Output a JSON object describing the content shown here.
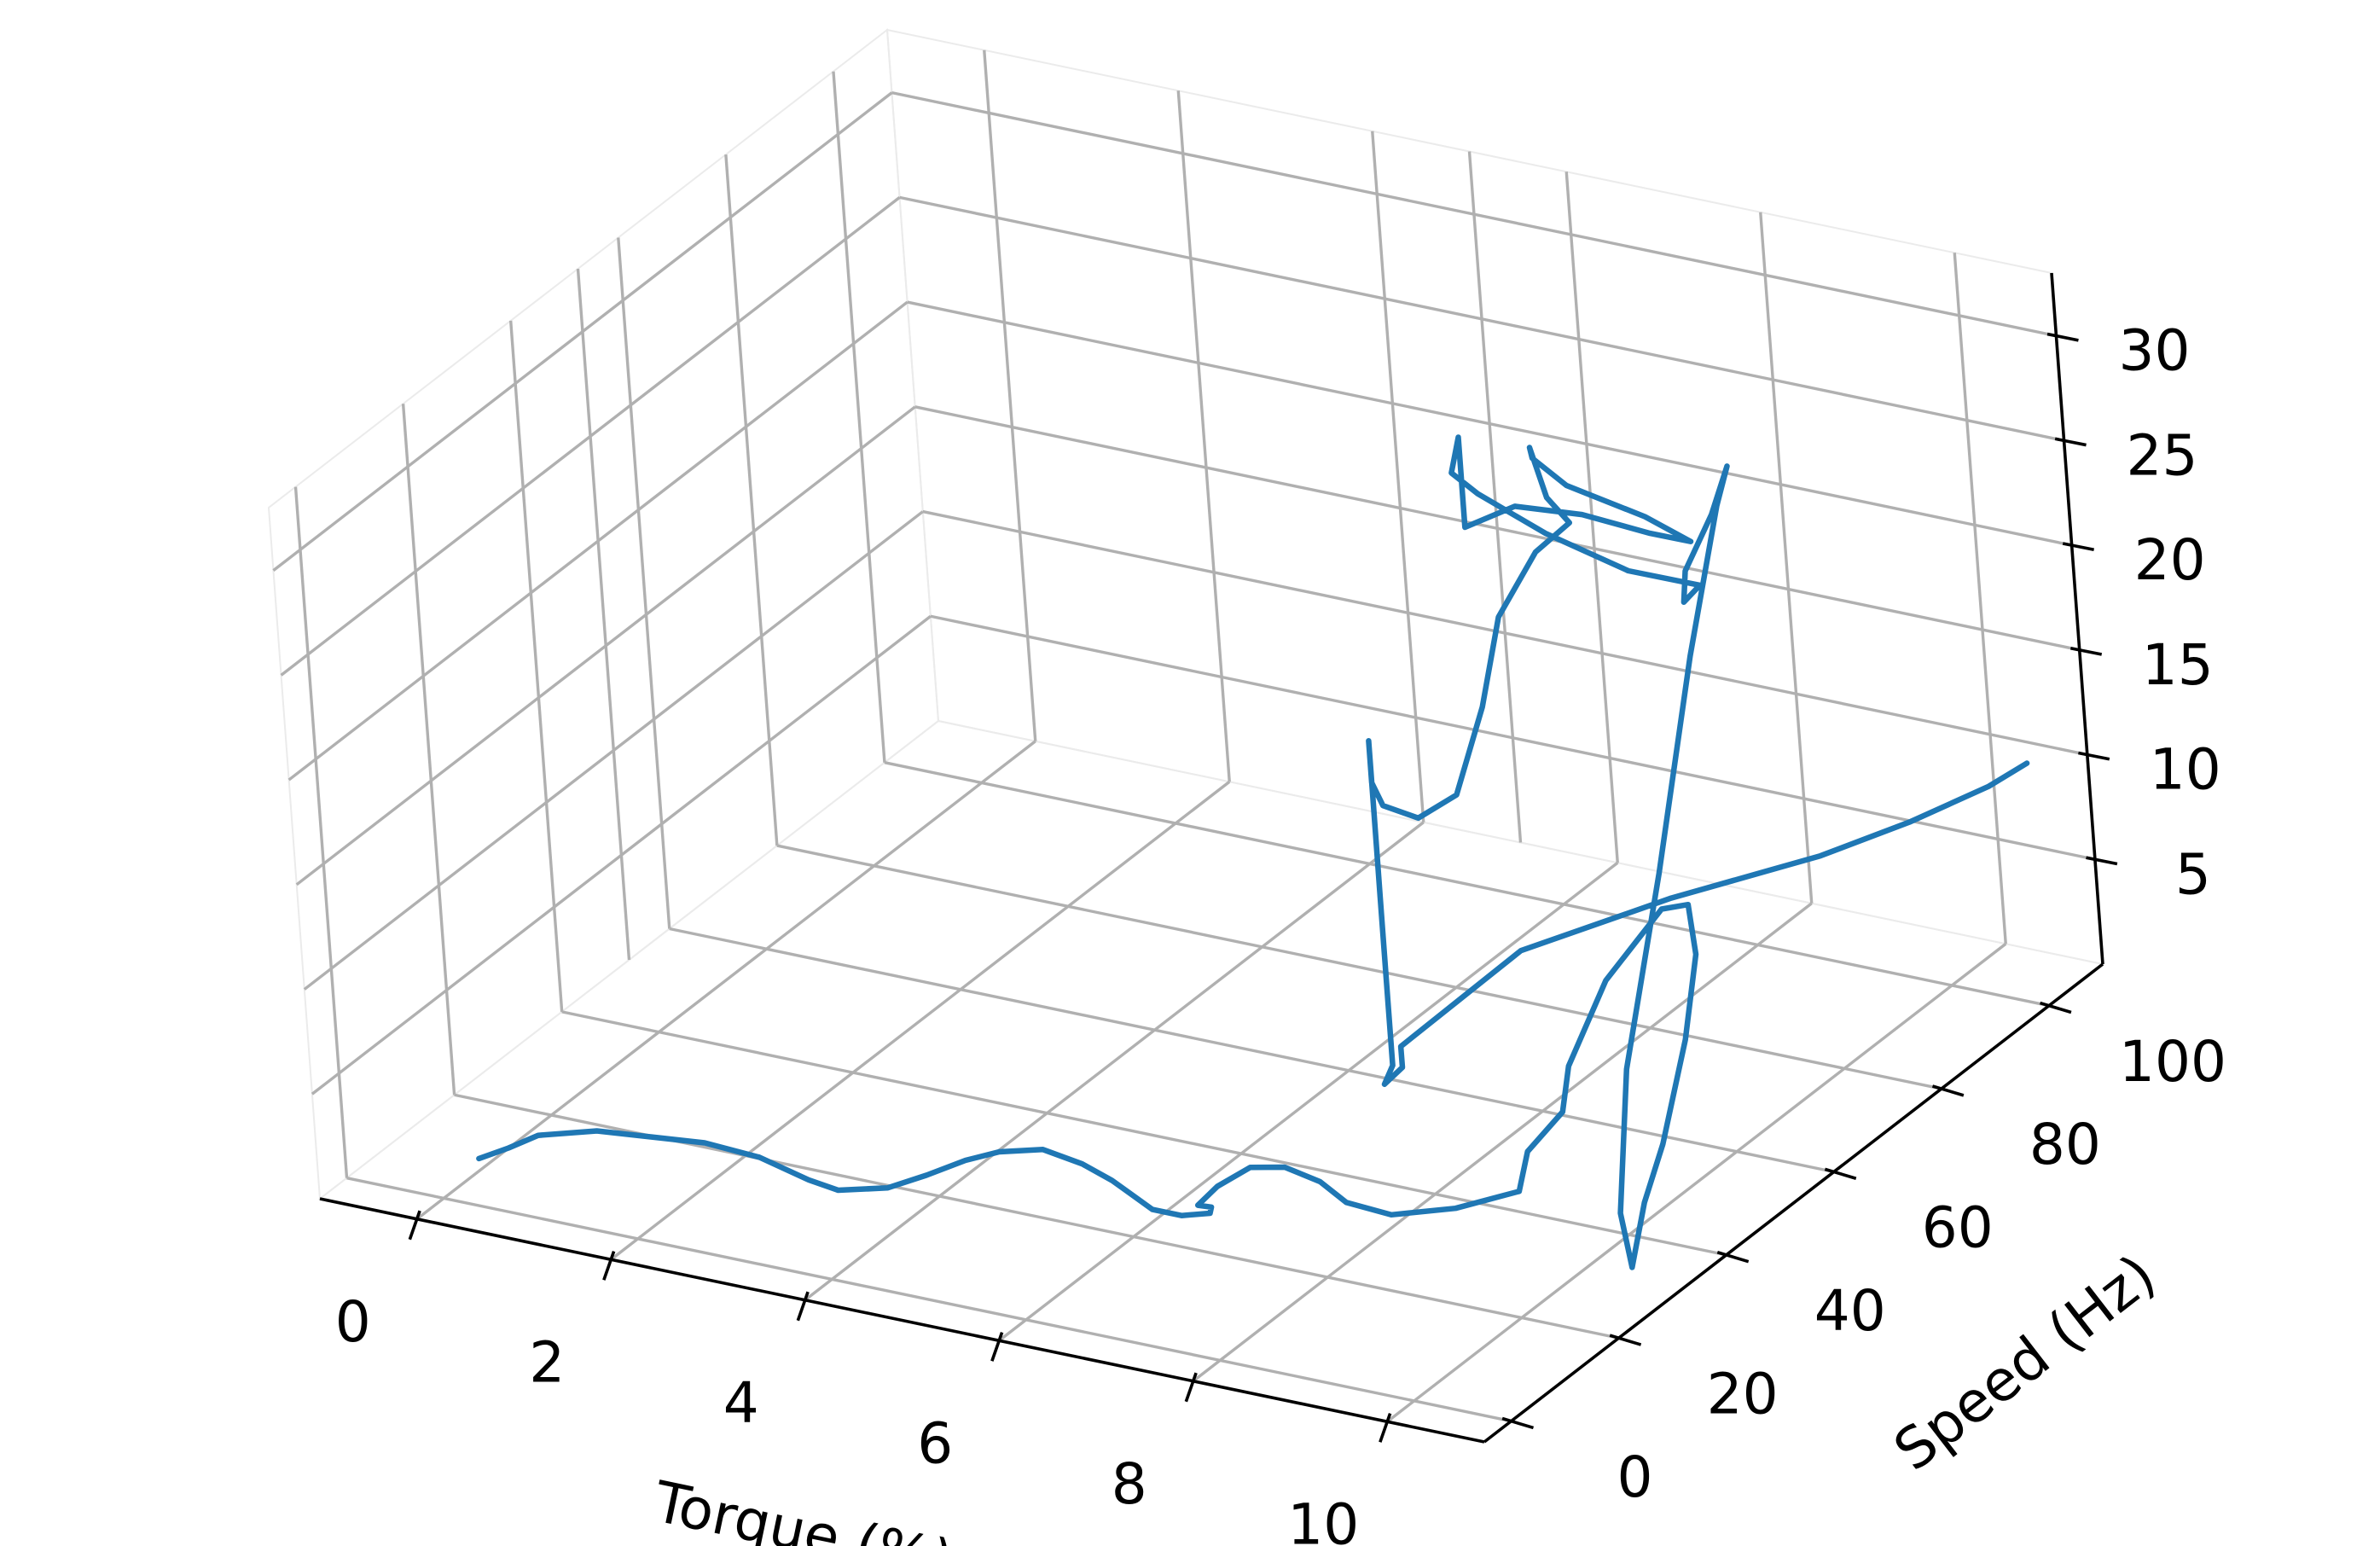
{
  "chart_data": {
    "type": "line3d",
    "title": "",
    "xlabel": "Torque (%)",
    "ylabel": "Speed (Hz)",
    "zlabel": "",
    "x_ticks": [
      0,
      2,
      4,
      6,
      8,
      10
    ],
    "y_ticks": [
      0,
      20,
      40,
      60,
      80,
      100
    ],
    "z_ticks": [
      5,
      10,
      15,
      20,
      25,
      30
    ],
    "xlim": [
      -1,
      11
    ],
    "ylim": [
      -5,
      110
    ],
    "zlim": [
      0,
      33
    ],
    "grid": true,
    "line_color": "#1f77b4",
    "pane_colors": {
      "floor": "#f2f2f2",
      "left_wall": "#f7f7f7",
      "back_wall": "#f0f0f0"
    },
    "series": [
      {
        "points": [
          [
            0.1,
            5,
            1
          ],
          [
            0.3,
            7,
            1.3
          ],
          [
            0.5,
            9,
            1.7
          ],
          [
            1.0,
            11,
            2.0
          ],
          [
            1.5,
            12,
            2.0
          ],
          [
            2.0,
            13,
            2.0
          ],
          [
            2.5,
            14,
            1.6
          ],
          [
            3.0,
            14,
            1.0
          ],
          [
            3.3,
            14,
            0.8
          ],
          [
            3.7,
            16,
            0.9
          ],
          [
            4.0,
            18,
            1.4
          ],
          [
            4.3,
            20,
            2.0
          ],
          [
            4.6,
            21,
            2.5
          ],
          [
            5.0,
            22,
            2.8
          ],
          [
            5.4,
            22,
            2.5
          ],
          [
            5.7,
            22,
            2.0
          ],
          [
            5.9,
            22,
            1.5
          ],
          [
            6.1,
            22,
            1.0
          ],
          [
            6.4,
            22,
            1.0
          ],
          [
            6.7,
            22,
            1.4
          ],
          [
            6.6,
            24,
            1.2
          ],
          [
            6.4,
            25,
            0.9
          ],
          [
            6.5,
            27,
            1.5
          ],
          [
            6.8,
            28,
            2.5
          ],
          [
            7.1,
            29,
            2.6
          ],
          [
            7.4,
            30,
            2.0
          ],
          [
            7.6,
            31,
            1.0
          ],
          [
            8.0,
            32,
            0.6
          ],
          [
            8.5,
            35,
            0.8
          ],
          [
            9.0,
            38,
            1.5
          ],
          [
            9.0,
            40,
            3.0
          ],
          [
            9.1,
            45,
            4.0
          ],
          [
            8.9,
            50,
            5.0
          ],
          [
            9.0,
            56,
            8.0
          ],
          [
            9.4,
            60,
            11.0
          ],
          [
            9.8,
            58,
            12.0
          ],
          [
            10.2,
            52,
            11.2
          ],
          [
            10.5,
            44,
            9.0
          ],
          [
            10.6,
            37,
            5.5
          ],
          [
            10.6,
            33,
            3.5
          ],
          [
            10.6,
            30,
            1.0
          ],
          [
            10.4,
            32,
            3.0
          ],
          [
            10.1,
            40,
            8.0
          ],
          [
            9.7,
            55,
            14.0
          ],
          [
            9.3,
            70,
            21.0
          ],
          [
            9.1,
            80,
            26.0
          ],
          [
            9.0,
            84,
            27.0
          ],
          [
            8.8,
            84,
            24.5
          ],
          [
            8.6,
            82,
            22.0
          ],
          [
            8.8,
            78,
            21.5
          ],
          [
            9.1,
            76,
            23.0
          ],
          [
            8.6,
            72,
            24.0
          ],
          [
            8.0,
            68,
            26.0
          ],
          [
            7.5,
            65,
            28.0
          ],
          [
            7.3,
            64,
            29.0
          ],
          [
            7.4,
            64,
            30.8
          ],
          [
            7.4,
            64,
            26.5
          ],
          [
            7.7,
            68,
            27.0
          ],
          [
            8.1,
            73,
            26.0
          ],
          [
            8.5,
            78,
            24.5
          ],
          [
            8.8,
            80,
            24.0
          ],
          [
            8.4,
            79,
            25.0
          ],
          [
            7.9,
            74,
            27.0
          ],
          [
            7.8,
            70,
            29.0
          ],
          [
            7.9,
            68,
            30.0
          ],
          [
            8.1,
            67,
            28.0
          ],
          [
            8.2,
            69,
            26.5
          ],
          [
            8.0,
            66,
            25.5
          ],
          [
            7.8,
            62,
            23.0
          ],
          [
            7.8,
            58,
            19.5
          ],
          [
            7.7,
            54,
            16.0
          ],
          [
            7.4,
            52,
            15.0
          ],
          [
            7.1,
            51,
            15.5
          ],
          [
            7.0,
            51,
            16.5
          ],
          [
            7.0,
            51,
            18.5
          ],
          [
            7.0,
            51,
            15.5
          ],
          [
            7.0,
            51,
            11.0
          ],
          [
            7.0,
            51,
            6.0
          ],
          [
            7.0,
            51,
            3.0
          ],
          [
            6.9,
            51,
            2.0
          ],
          [
            7.1,
            51,
            3.0
          ],
          [
            7.1,
            51,
            4.0
          ],
          [
            7.2,
            60,
            4.5
          ],
          [
            7.3,
            70,
            5.0
          ],
          [
            8.2,
            82,
            6.0
          ],
          [
            9.2,
            92,
            7.0
          ],
          [
            9.8,
            98,
            8.0
          ],
          [
            10.3,
            104,
            9.0
          ],
          [
            10.6,
            106,
            10.0
          ]
        ]
      }
    ]
  }
}
